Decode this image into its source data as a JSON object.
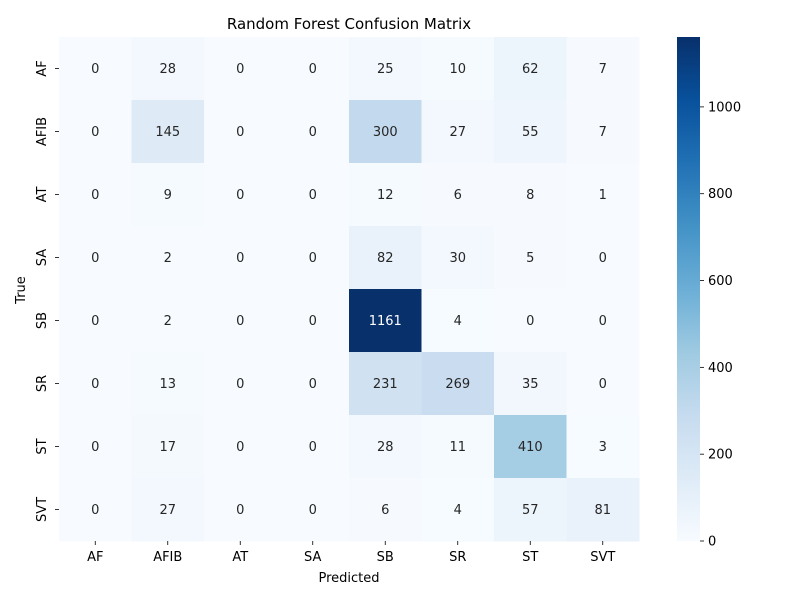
{
  "chart_data": {
    "type": "heatmap",
    "title": "Random Forest Confusion Matrix",
    "xlabel": "Predicted",
    "ylabel": "True",
    "x_categories": [
      "AF",
      "AFIB",
      "AT",
      "SA",
      "SB",
      "SR",
      "ST",
      "SVT"
    ],
    "y_categories": [
      "AF",
      "AFIB",
      "AT",
      "SA",
      "SB",
      "SR",
      "ST",
      "SVT"
    ],
    "values": [
      [
        0,
        28,
        0,
        0,
        25,
        10,
        62,
        7
      ],
      [
        0,
        145,
        0,
        0,
        300,
        27,
        55,
        7
      ],
      [
        0,
        9,
        0,
        0,
        12,
        6,
        8,
        1
      ],
      [
        0,
        2,
        0,
        0,
        82,
        30,
        5,
        0
      ],
      [
        0,
        2,
        0,
        0,
        1161,
        4,
        0,
        0
      ],
      [
        0,
        13,
        0,
        0,
        231,
        269,
        35,
        0
      ],
      [
        0,
        17,
        0,
        0,
        28,
        11,
        410,
        3
      ],
      [
        0,
        27,
        0,
        0,
        6,
        4,
        57,
        81
      ]
    ],
    "colorbar": {
      "colormap": "Blues",
      "range": [
        0,
        1161
      ],
      "ticks": [
        0,
        200,
        400,
        600,
        800,
        1000
      ]
    }
  }
}
